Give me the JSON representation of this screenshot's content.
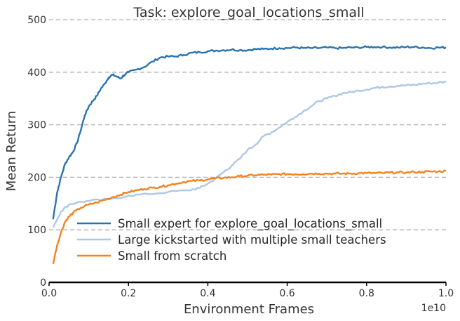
{
  "chart_data": {
    "type": "line",
    "title": "Task: explore_goal_locations_small",
    "xlabel": "Environment Frames",
    "ylabel": "Mean Return",
    "x_exponent_label": "1e10",
    "xlim": [
      0,
      1.0
    ],
    "ylim": [
      0,
      500
    ],
    "x_ticks": [
      0.0,
      0.2,
      0.4,
      0.6,
      0.8,
      1.0
    ],
    "x_tick_labels": [
      "0.0",
      "0.2",
      "0.4",
      "0.6",
      "0.8",
      "1.0"
    ],
    "y_ticks": [
      0,
      100,
      200,
      300,
      400,
      500
    ],
    "y_tick_labels": [
      "0",
      "100",
      "200",
      "300",
      "400",
      "500"
    ],
    "grid": "horizontal-dashed",
    "legend_position": "lower-right",
    "series": [
      {
        "name": "Small expert for explore_goal_locations_small",
        "color": "#2a74ae",
        "x": [
          0.01,
          0.02,
          0.03,
          0.04,
          0.05,
          0.06,
          0.07,
          0.08,
          0.09,
          0.1,
          0.11,
          0.12,
          0.13,
          0.14,
          0.15,
          0.16,
          0.17,
          0.18,
          0.19,
          0.2,
          0.22,
          0.24,
          0.26,
          0.28,
          0.3,
          0.32,
          0.34,
          0.36,
          0.38,
          0.4,
          0.42,
          0.44,
          0.46,
          0.48,
          0.5,
          0.52,
          0.54,
          0.56,
          0.58,
          0.6,
          0.62,
          0.64,
          0.66,
          0.68,
          0.7,
          0.72,
          0.74,
          0.76,
          0.78,
          0.8,
          0.82,
          0.84,
          0.86,
          0.88,
          0.9,
          0.92,
          0.94,
          0.96,
          0.98,
          1.0
        ],
        "y": [
          120,
          170,
          200,
          225,
          238,
          248,
          265,
          290,
          318,
          335,
          345,
          355,
          368,
          378,
          390,
          395,
          392,
          388,
          395,
          400,
          405,
          410,
          420,
          428,
          430,
          430,
          433,
          437,
          438,
          440,
          441,
          442,
          443,
          442,
          442,
          444,
          444,
          445,
          446,
          446,
          447,
          446,
          446,
          446,
          447,
          446,
          446,
          447,
          447,
          448,
          448,
          448,
          447,
          447,
          448,
          448,
          447,
          446,
          447,
          447
        ]
      },
      {
        "name": "Large kickstarted with multiple small teachers",
        "color": "#aec7e8",
        "x": [
          0.01,
          0.03,
          0.05,
          0.07,
          0.1,
          0.15,
          0.2,
          0.25,
          0.3,
          0.35,
          0.38,
          0.4,
          0.42,
          0.44,
          0.46,
          0.48,
          0.5,
          0.52,
          0.54,
          0.56,
          0.58,
          0.6,
          0.62,
          0.64,
          0.66,
          0.68,
          0.7,
          0.72,
          0.74,
          0.76,
          0.78,
          0.8,
          0.82,
          0.84,
          0.86,
          0.88,
          0.9,
          0.92,
          0.94,
          0.96,
          0.98,
          1.0
        ],
        "y": [
          105,
          135,
          148,
          152,
          155,
          158,
          165,
          168,
          172,
          175,
          180,
          188,
          198,
          210,
          222,
          235,
          252,
          262,
          278,
          285,
          295,
          305,
          315,
          325,
          335,
          345,
          350,
          355,
          360,
          362,
          365,
          367,
          370,
          372,
          373,
          374,
          375,
          376,
          378,
          379,
          380,
          382
        ]
      },
      {
        "name": "Small from scratch",
        "color": "#f5821f",
        "x": [
          0.01,
          0.02,
          0.03,
          0.04,
          0.05,
          0.06,
          0.08,
          0.1,
          0.12,
          0.14,
          0.16,
          0.18,
          0.2,
          0.22,
          0.24,
          0.26,
          0.28,
          0.3,
          0.32,
          0.34,
          0.36,
          0.38,
          0.4,
          0.42,
          0.44,
          0.46,
          0.48,
          0.5,
          0.52,
          0.54,
          0.56,
          0.58,
          0.6,
          0.62,
          0.64,
          0.66,
          0.68,
          0.7,
          0.72,
          0.74,
          0.76,
          0.78,
          0.8,
          0.82,
          0.84,
          0.86,
          0.88,
          0.9,
          0.92,
          0.94,
          0.96,
          0.98,
          1.0
        ],
        "y": [
          35,
          70,
          95,
          115,
          125,
          132,
          142,
          148,
          152,
          157,
          162,
          167,
          172,
          175,
          178,
          180,
          182,
          185,
          188,
          191,
          193,
          194,
          196,
          198,
          199,
          200,
          202,
          203,
          204,
          205,
          205,
          206,
          206,
          206,
          206,
          207,
          207,
          207,
          207,
          207,
          207,
          208,
          208,
          208,
          208,
          209,
          209,
          209,
          210,
          210,
          211,
          211,
          212
        ]
      }
    ]
  }
}
